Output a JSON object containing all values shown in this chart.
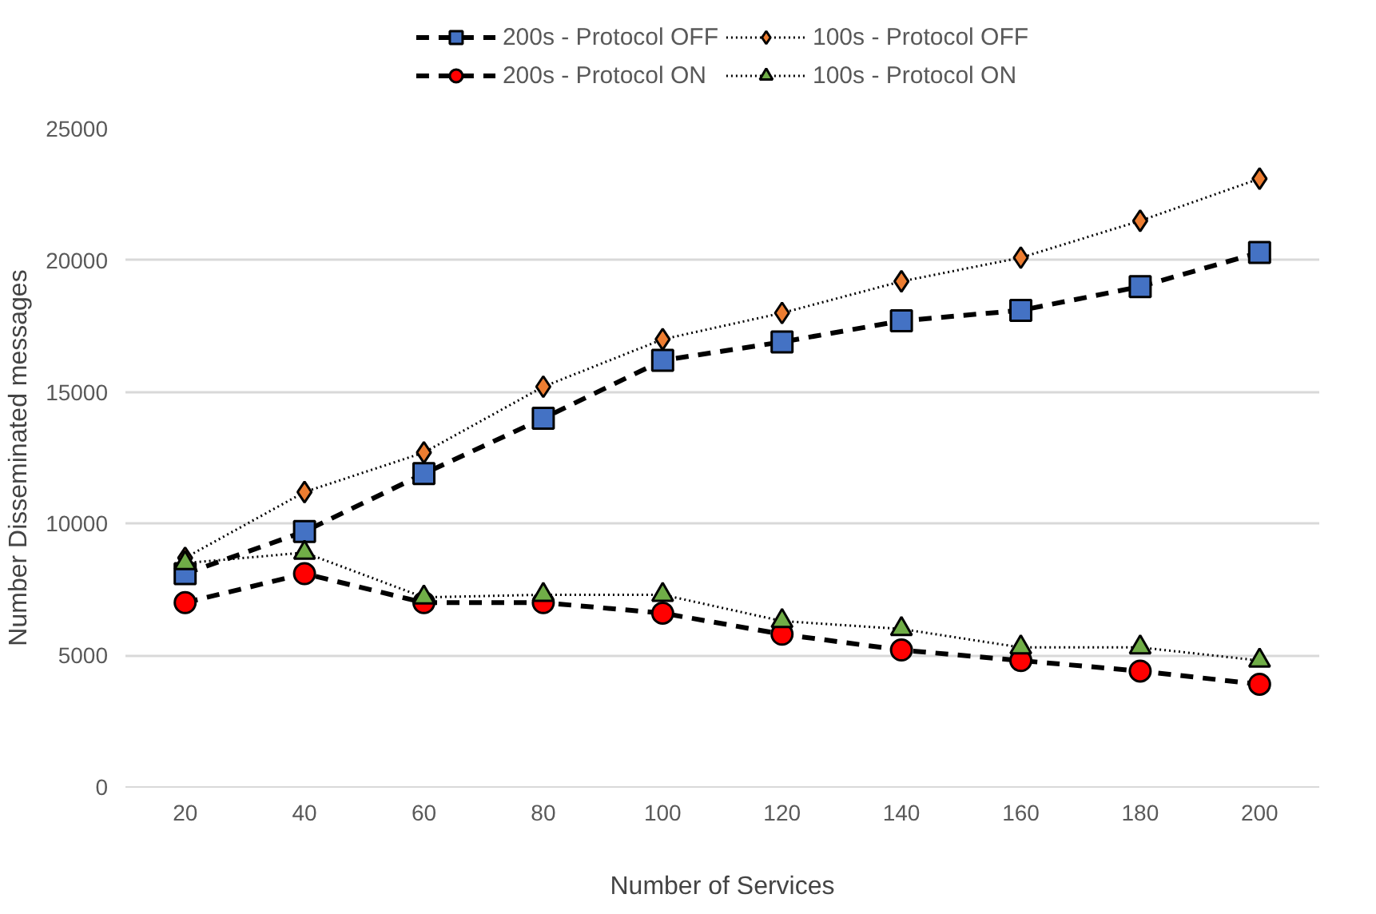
{
  "chart_data": {
    "type": "line",
    "xlabel": "Number of Services",
    "ylabel": "Number Disseminated messages",
    "categories": [
      "20",
      "40",
      "60",
      "80",
      "100",
      "120",
      "140",
      "160",
      "180",
      "200"
    ],
    "ylim": [
      0,
      25000
    ],
    "yticks": [
      0,
      5000,
      10000,
      15000,
      20000,
      25000
    ],
    "grid": "y",
    "legend": "top",
    "series": [
      {
        "name": "200s - Protocol OFF",
        "color": "#4472c4",
        "line_style": "dashed",
        "marker": "square",
        "values": [
          8100,
          9700,
          11900,
          14000,
          16200,
          16900,
          17700,
          18100,
          19000,
          20300
        ]
      },
      {
        "name": "200s - Protocol ON",
        "color": "#ff0000",
        "line_style": "dashed",
        "marker": "circle",
        "values": [
          7000,
          8100,
          7000,
          7000,
          6600,
          5800,
          5200,
          4800,
          4400,
          3900
        ]
      },
      {
        "name": "100s - Protocol OFF",
        "color": "#ed7d31",
        "line_style": "dotted",
        "marker": "diamond",
        "values": [
          8700,
          11200,
          12700,
          15200,
          17000,
          18000,
          19200,
          20100,
          21500,
          23100
        ]
      },
      {
        "name": "100s - Protocol ON",
        "color": "#70ad47",
        "line_style": "dotted",
        "marker": "triangle",
        "values": [
          8500,
          8900,
          7200,
          7300,
          7300,
          6300,
          6000,
          5300,
          5300,
          4800
        ]
      }
    ]
  }
}
